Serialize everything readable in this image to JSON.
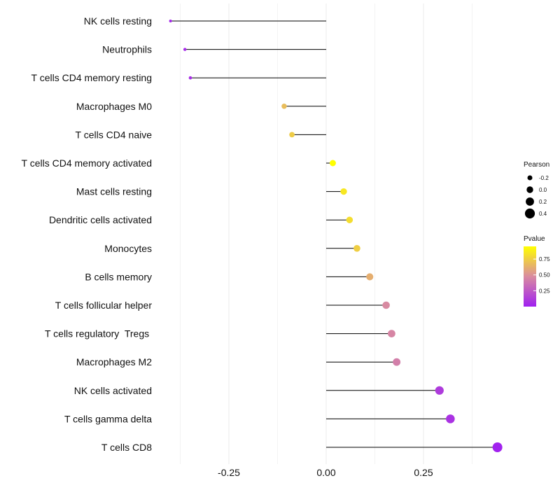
{
  "chart_data": {
    "type": "lollipop",
    "categories": [
      "NK cells resting",
      "Neutrophils",
      "T cells CD4 memory resting",
      "Macrophages M0",
      "T cells CD4 naive",
      "T cells CD4 memory activated",
      "Mast cells resting",
      "Dendritic cells activated",
      "Monocytes",
      "B cells memory",
      "T cells follicular helper",
      "T cells regulatory  Tregs ",
      "Macrophages M2",
      "NK cells activated",
      "T cells gamma delta",
      "T cells CD8"
    ],
    "pearson": [
      -0.4,
      -0.363,
      -0.349,
      -0.108,
      -0.088,
      0.017,
      0.045,
      0.06,
      0.079,
      0.112,
      0.154,
      0.168,
      0.181,
      0.291,
      0.319,
      0.44
    ],
    "pvalue": [
      0.03,
      0.05,
      0.06,
      0.68,
      0.74,
      0.95,
      0.85,
      0.81,
      0.75,
      0.62,
      0.47,
      0.45,
      0.42,
      0.12,
      0.08,
      0.01
    ],
    "xlim": [
      -0.38,
      0.44
    ],
    "x_ticks": [
      -0.25,
      0.0,
      0.25
    ],
    "x_tick_labels": [
      "-0.25",
      "0.00",
      "0.25"
    ],
    "xlabel": "",
    "ylabel": "",
    "grid": true,
    "legend_size": {
      "title": "Pearson",
      "values": [
        -0.2,
        0.0,
        0.2,
        0.4
      ],
      "labels": [
        "-0.2",
        "0.0",
        "0.2",
        "0.4"
      ]
    },
    "legend_color": {
      "title": "Pvalue",
      "ticks": [
        0.75,
        0.5,
        0.25
      ],
      "labels": [
        "0.75",
        "0.50",
        "0.25"
      ],
      "range": [
        0.0,
        0.95
      ],
      "low_color": "#a020f0",
      "mid_color": "#d98ba0",
      "high_color": "#ffff00"
    },
    "line_color": "#000000",
    "grid_color": "#ebebeb"
  }
}
